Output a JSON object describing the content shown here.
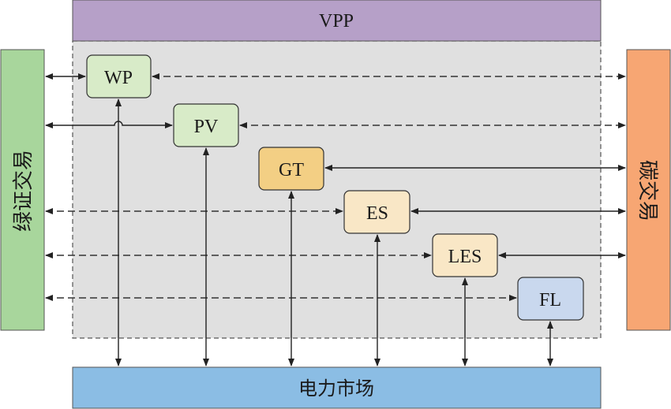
{
  "title": "VPP",
  "bottom_bar": "电力市场",
  "left_bar": "绿证交易",
  "right_bar": "碳交易",
  "nodes": [
    {
      "id": "wp",
      "label": "WP",
      "color": "#d8ebc8"
    },
    {
      "id": "pv",
      "label": "PV",
      "color": "#d8ebc8"
    },
    {
      "id": "gt",
      "label": "GT",
      "color": "#f3cf84"
    },
    {
      "id": "es",
      "label": "ES",
      "color": "#f9e7c6"
    },
    {
      "id": "les",
      "label": "LES",
      "color": "#f9e7c6"
    },
    {
      "id": "fl",
      "label": "FL",
      "color": "#c9d8ee"
    }
  ],
  "colors": {
    "vpp_header": "#b6a0c8",
    "vpp_area": "#e0e0e0",
    "bottom_bar": "#8bbde4",
    "left_bar": "#a8d69c",
    "right_bar": "#f7a673"
  }
}
